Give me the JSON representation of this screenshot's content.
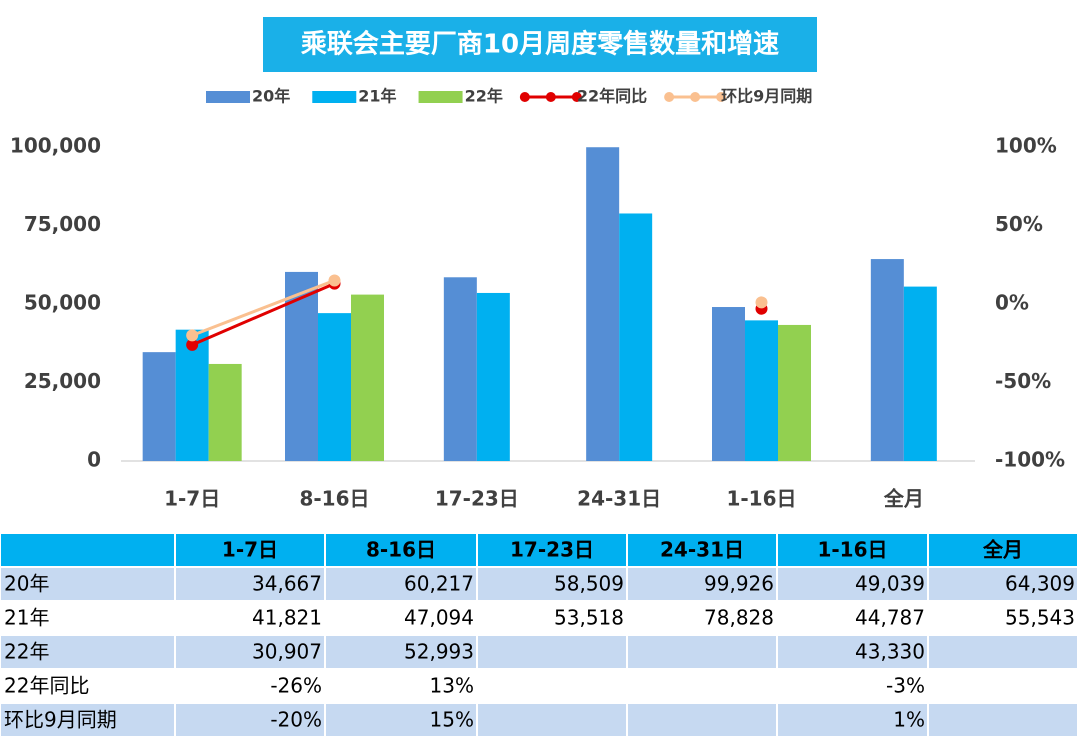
{
  "chart_data": {
    "type": "bar",
    "title": "乘联会主要厂商10月周度零售数量和增速",
    "categories": [
      "1-7日",
      "8-16日",
      "17-23日",
      "24-31日",
      "1-16日",
      "全月"
    ],
    "series": [
      {
        "name": "20年",
        "color": "#558ed5",
        "values": [
          34667,
          60217,
          58509,
          99926,
          49039,
          64309
        ],
        "value_labels": [
          "34,667",
          "60,217",
          "58,509",
          "99,926",
          "49,039",
          "64,309"
        ]
      },
      {
        "name": "21年",
        "color": "#00b0f0",
        "values": [
          41821,
          47094,
          53518,
          78828,
          44787,
          55543
        ],
        "value_labels": [
          "41,821",
          "47,094",
          "53,518",
          "78,828",
          "44,787",
          "55,543"
        ]
      },
      {
        "name": "22年",
        "color": "#92d050",
        "values": [
          30907,
          52993,
          null,
          null,
          43330,
          null
        ],
        "value_labels": [
          "30,907",
          "52,993",
          null,
          null,
          "43,330",
          null
        ]
      },
      {
        "name": "22年同比",
        "type": "line",
        "axis": "y2",
        "color": "#e00000",
        "values": [
          -26,
          13,
          null,
          null,
          -3,
          null
        ],
        "value_labels": [
          "-26%",
          "13%",
          null,
          null,
          "-3%",
          null
        ]
      },
      {
        "name": "环比9月同期",
        "type": "line",
        "axis": "y2",
        "color": "#fac090",
        "values": [
          -20,
          15,
          null,
          null,
          1,
          null
        ],
        "value_labels": [
          "-20%",
          "15%",
          null,
          null,
          "1%",
          null
        ]
      }
    ],
    "ylim": [
      0,
      100000
    ],
    "yticks": [
      0,
      {
        "value": 25000,
        "label": "25,000"
      },
      {
        "value": 50000,
        "label": "50,000"
      },
      {
        "value": 75000,
        "label": "75,000"
      },
      {
        "value": 100000,
        "label": "100,000"
      }
    ],
    "y2lim": [
      -100,
      100
    ],
    "y2ticks": [
      {
        "value": -100,
        "label": "-100%"
      },
      {
        "value": -50,
        "label": "-50%"
      },
      {
        "value": 0,
        "label": "0%"
      },
      {
        "value": 50,
        "label": "50%"
      },
      {
        "value": 100,
        "label": "100%"
      }
    ],
    "legend": "top"
  }
}
